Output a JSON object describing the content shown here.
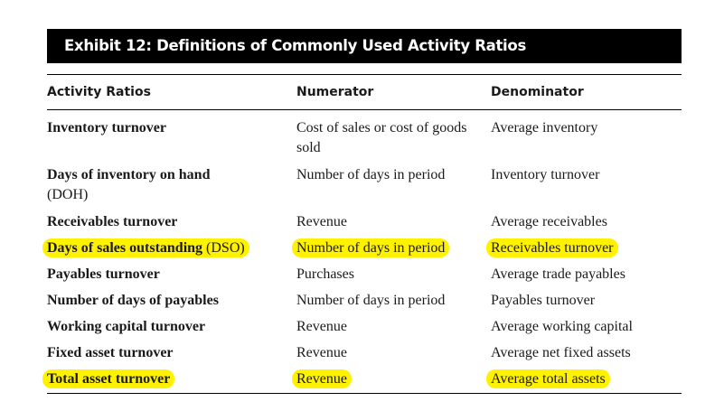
{
  "exhibit": {
    "title": "Exhibit 12: Definitions of Commonly Used Activity Ratios",
    "headers": {
      "ratio": "Activity Ratios",
      "numerator": "Numerator",
      "denominator": "Denominator"
    },
    "highlight_color": "#fff200",
    "rows": [
      {
        "ratio": "Inventory turnover",
        "abbr": "",
        "numerator": "Cost of sales or cost of goods sold",
        "denominator": "Average inventory",
        "highlighted": false
      },
      {
        "ratio": "Days of inventory on hand",
        "abbr": "(DOH)",
        "numerator": "Number of days in period",
        "denominator": "Inventory turnover",
        "highlighted": false
      },
      {
        "ratio": "Receivables turnover",
        "abbr": "",
        "numerator": "Revenue",
        "denominator": "Average receivables",
        "highlighted": false
      },
      {
        "ratio": "Days of sales outstanding",
        "abbr": "(DSO)",
        "numerator": "Number of days in period",
        "denominator": "Receivables turnover",
        "highlighted": true
      },
      {
        "ratio": "Payables turnover",
        "abbr": "",
        "numerator": "Purchases",
        "denominator": "Average trade payables",
        "highlighted": false
      },
      {
        "ratio": "Number of days of payables",
        "abbr": "",
        "numerator": "Number of days in period",
        "denominator": "Payables turnover",
        "highlighted": false
      },
      {
        "ratio": "Working capital turnover",
        "abbr": "",
        "numerator": "Revenue",
        "denominator": "Average working capital",
        "highlighted": false
      },
      {
        "ratio": "Fixed asset turnover",
        "abbr": "",
        "numerator": "Revenue",
        "denominator": "Average net fixed assets",
        "highlighted": false
      },
      {
        "ratio": "Total asset turnover",
        "abbr": "",
        "numerator": "Revenue",
        "denominator": "Average total assets",
        "highlighted": true
      }
    ]
  }
}
